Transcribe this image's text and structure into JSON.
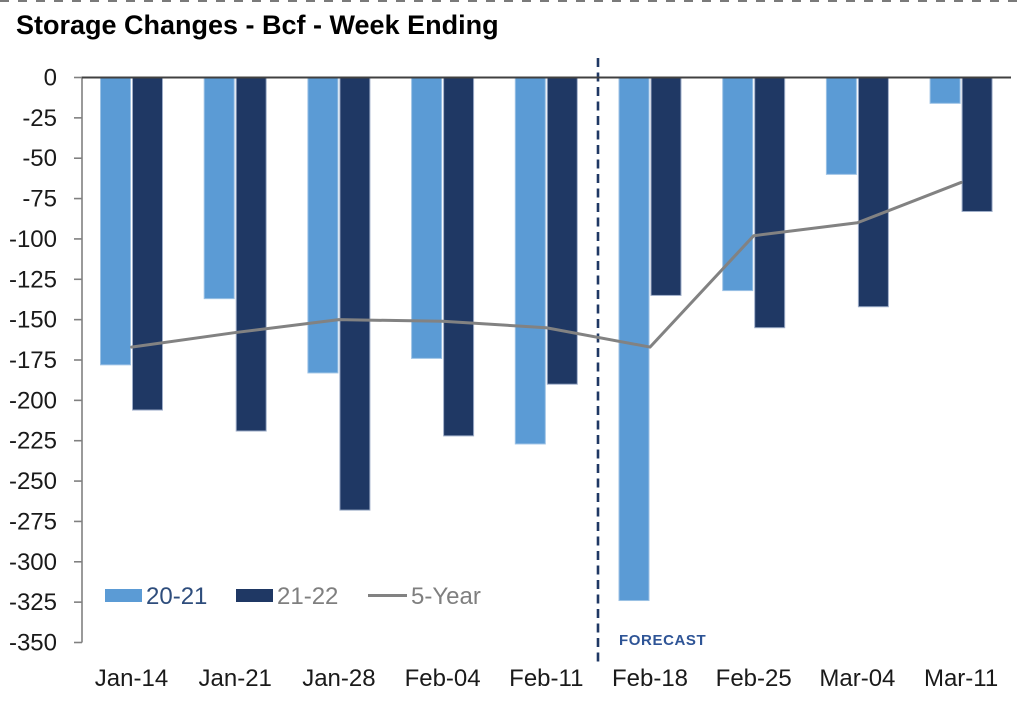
{
  "chart_data": {
    "type": "combo",
    "title": "Storage Changes - Bcf - Week Ending",
    "categories": [
      "Jan-14",
      "Jan-21",
      "Jan-28",
      "Feb-04",
      "Feb-11",
      "Feb-18",
      "Feb-25",
      "Mar-04",
      "Mar-11"
    ],
    "series": [
      {
        "name": "20-21",
        "type": "bar",
        "color": "#5B9BD5",
        "values": [
          -178,
          -137,
          -183,
          -174,
          -227,
          -324,
          -132,
          -60,
          -16
        ]
      },
      {
        "name": "21-22",
        "type": "bar",
        "color": "#1F3864",
        "values": [
          -206,
          -219,
          -268,
          -222,
          -190,
          -135,
          -155,
          -142,
          -83
        ]
      },
      {
        "name": "5-Year",
        "type": "line",
        "color": "#828282",
        "values": [
          -167,
          -158,
          -150,
          -151,
          -155,
          -167,
          -98,
          -90,
          -65
        ]
      }
    ],
    "xlabel": "",
    "ylabel": "",
    "ylim": [
      -350,
      0
    ],
    "ytick_step": 25,
    "ytick_labels": [
      "0",
      "-25",
      "-50",
      "-75",
      "-100",
      "-125",
      "-150",
      "-175",
      "-200",
      "-225",
      "-250",
      "-275",
      "-300",
      "-325",
      "-350"
    ],
    "grid": false,
    "legend_position": "bottom-left-inside",
    "legend_label_colors": [
      "#2E4D7C",
      "#7F7F7F",
      "#7F7F7F"
    ],
    "forecast": {
      "label": "FORECAST",
      "label_color": "#2E5496",
      "divider_color": "#1F3864",
      "divider_between": [
        "Feb-11",
        "Feb-18"
      ]
    }
  }
}
